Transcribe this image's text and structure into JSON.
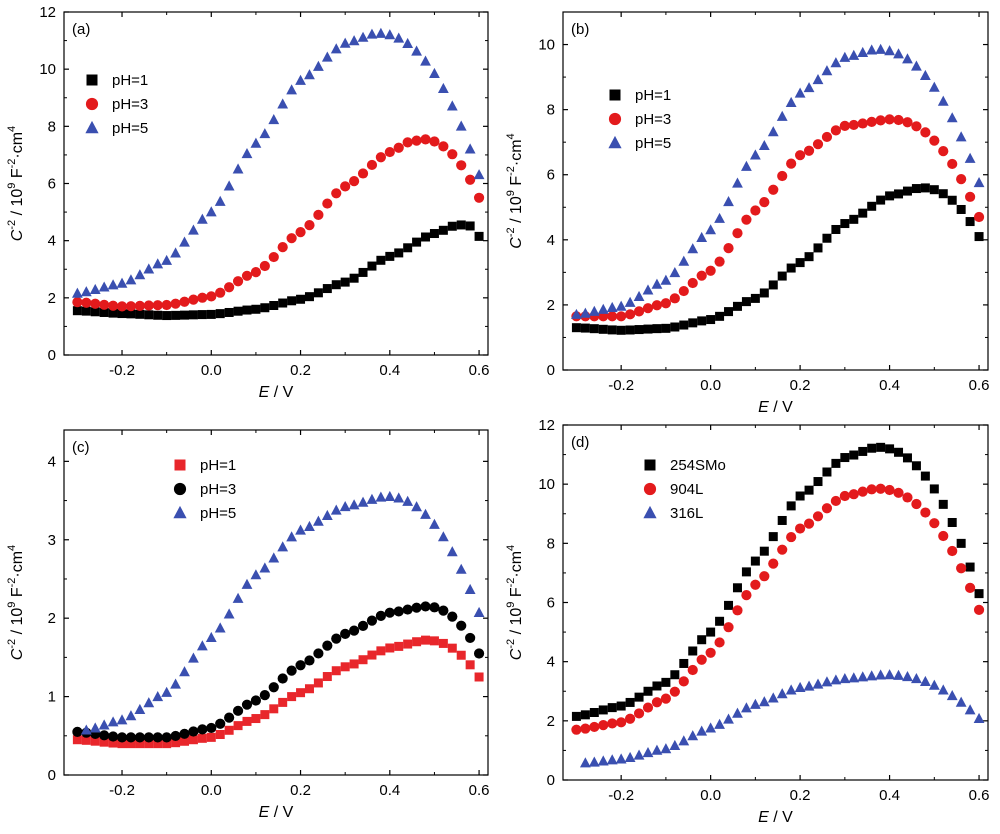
{
  "chart_data": [
    {
      "id": "a",
      "type": "scatter",
      "panel_label": "(a)",
      "xlabel_var": "E",
      "xlabel_unit": " / V",
      "ylabel_var": "C",
      "ylabel_sup1": "-2",
      "ylabel_mid": " / 10",
      "ylabel_sup2": "9",
      "ylabel_mid2": " F",
      "ylabel_sup3": "-2",
      "ylabel_end": "·cm",
      "ylabel_sup4": "4",
      "xlim": [
        -0.33,
        0.62
      ],
      "ylim": [
        0,
        12
      ],
      "xticks": [
        -0.2,
        0.0,
        0.2,
        0.4,
        0.6
      ],
      "xtick_labels": [
        "-0.2",
        "0.0",
        "0.2",
        "0.4",
        "0.6"
      ],
      "yticks": [
        0,
        2,
        4,
        6,
        8,
        10,
        12
      ],
      "ytick_labels": [
        "0",
        "2",
        "4",
        "6",
        "8",
        "10",
        "12"
      ],
      "legend_position": "upper-left",
      "series": [
        {
          "name": "pH=1",
          "marker": "square",
          "color": "#000000",
          "peak_x": 0.57,
          "peak_y": 4.55,
          "end_y": 4.15,
          "anchors": [
            [
              -0.3,
              1.55
            ],
            [
              -0.2,
              1.45
            ],
            [
              -0.1,
              1.38
            ],
            [
              0.0,
              1.42
            ],
            [
              0.1,
              1.6
            ],
            [
              0.2,
              1.95
            ],
            [
              0.3,
              2.55
            ],
            [
              0.4,
              3.45
            ],
            [
              0.5,
              4.25
            ],
            [
              0.55,
              4.55
            ]
          ]
        },
        {
          "name": "pH=3",
          "marker": "circle",
          "color": "#e31a1c",
          "peak_x": 0.47,
          "peak_y": 7.55,
          "end_y": 5.5,
          "anchors": [
            [
              -0.3,
              1.85
            ],
            [
              -0.2,
              1.7
            ],
            [
              -0.1,
              1.75
            ],
            [
              0.0,
              2.05
            ],
            [
              0.1,
              2.9
            ],
            [
              0.2,
              4.3
            ],
            [
              0.3,
              5.9
            ],
            [
              0.4,
              7.1
            ],
            [
              0.45,
              7.5
            ]
          ]
        },
        {
          "name": "pH=5",
          "marker": "triangle",
          "color": "#3a4fb0",
          "peak_x": 0.37,
          "peak_y": 11.25,
          "end_y": 6.3,
          "anchors": [
            [
              -0.3,
              2.15
            ],
            [
              -0.2,
              2.5
            ],
            [
              -0.1,
              3.3
            ],
            [
              0.0,
              5.0
            ],
            [
              0.1,
              7.4
            ],
            [
              0.2,
              9.6
            ],
            [
              0.3,
              10.9
            ],
            [
              0.37,
              11.25
            ]
          ]
        }
      ]
    },
    {
      "id": "b",
      "type": "scatter",
      "panel_label": "(b)",
      "xlabel_var": "E",
      "xlabel_unit": " / V",
      "ylabel_var": "C",
      "ylabel_sup1": "-2",
      "ylabel_mid": " / 10",
      "ylabel_sup2": "9",
      "ylabel_mid2": " F",
      "ylabel_sup3": "-2",
      "ylabel_end": "·cm",
      "ylabel_sup4": "4",
      "xlim": [
        -0.33,
        0.62
      ],
      "ylim": [
        0,
        11
      ],
      "xticks": [
        -0.2,
        0.0,
        0.2,
        0.4,
        0.6
      ],
      "xtick_labels": [
        "-0.2",
        "0.0",
        "0.2",
        "0.4",
        "0.6"
      ],
      "yticks": [
        0,
        2,
        4,
        6,
        8,
        10
      ],
      "ytick_labels": [
        "0",
        "2",
        "4",
        "6",
        "8",
        "10"
      ],
      "legend_position": "upper-left",
      "series": [
        {
          "name": "pH=1",
          "marker": "square",
          "color": "#000000",
          "peak_x": 0.47,
          "peak_y": 5.6,
          "end_y": 4.1,
          "anchors": [
            [
              -0.3,
              1.3
            ],
            [
              -0.2,
              1.22
            ],
            [
              -0.1,
              1.28
            ],
            [
              0.0,
              1.55
            ],
            [
              0.1,
              2.2
            ],
            [
              0.2,
              3.3
            ],
            [
              0.3,
              4.5
            ],
            [
              0.4,
              5.35
            ],
            [
              0.47,
              5.6
            ]
          ]
        },
        {
          "name": "pH=3",
          "marker": "circle",
          "color": "#e31a1c",
          "peak_x": 0.4,
          "peak_y": 7.7,
          "end_y": 4.7,
          "anchors": [
            [
              -0.3,
              1.65
            ],
            [
              -0.2,
              1.65
            ],
            [
              -0.1,
              2.05
            ],
            [
              0.0,
              3.05
            ],
            [
              0.1,
              4.9
            ],
            [
              0.2,
              6.6
            ],
            [
              0.3,
              7.5
            ],
            [
              0.4,
              7.7
            ]
          ]
        },
        {
          "name": "pH=5",
          "marker": "triangle",
          "color": "#3a4fb0",
          "peak_x": 0.37,
          "peak_y": 9.85,
          "end_y": 5.75,
          "anchors": [
            [
              -0.3,
              1.7
            ],
            [
              -0.2,
              1.95
            ],
            [
              -0.1,
              2.75
            ],
            [
              0.0,
              4.3
            ],
            [
              0.1,
              6.6
            ],
            [
              0.2,
              8.5
            ],
            [
              0.3,
              9.6
            ],
            [
              0.37,
              9.85
            ]
          ]
        }
      ]
    },
    {
      "id": "c",
      "type": "scatter",
      "panel_label": "(c)",
      "xlabel_var": "E",
      "xlabel_unit": " / V",
      "ylabel_var": "C",
      "ylabel_sup1": "-2",
      "ylabel_mid": " / 10",
      "ylabel_sup2": "9",
      "ylabel_mid2": " F",
      "ylabel_sup3": "-2",
      "ylabel_end": "·cm",
      "ylabel_sup4": "4",
      "xlim": [
        -0.33,
        0.62
      ],
      "ylim": [
        0,
        4.4
      ],
      "xticks": [
        -0.2,
        0.0,
        0.2,
        0.4,
        0.6
      ],
      "xtick_labels": [
        "-0.2",
        "0.0",
        "0.2",
        "0.4",
        "0.6"
      ],
      "yticks": [
        0,
        1,
        2,
        3,
        4
      ],
      "ytick_labels": [
        "0",
        "1",
        "2",
        "3",
        "4"
      ],
      "legend_position": "top-center",
      "series": [
        {
          "name": "pH=1",
          "marker": "square",
          "color": "#e8262b",
          "peak_x": 0.48,
          "peak_y": 1.72,
          "end_y": 1.25,
          "anchors": [
            [
              -0.3,
              0.45
            ],
            [
              -0.2,
              0.4
            ],
            [
              -0.1,
              0.4
            ],
            [
              0.0,
              0.48
            ],
            [
              0.1,
              0.72
            ],
            [
              0.2,
              1.05
            ],
            [
              0.3,
              1.38
            ],
            [
              0.4,
              1.62
            ],
            [
              0.48,
              1.72
            ]
          ]
        },
        {
          "name": "pH=3",
          "marker": "circle",
          "color": "#000000",
          "peak_x": 0.48,
          "peak_y": 2.15,
          "end_y": 1.55,
          "anchors": [
            [
              -0.3,
              0.55
            ],
            [
              -0.2,
              0.48
            ],
            [
              -0.1,
              0.48
            ],
            [
              0.0,
              0.6
            ],
            [
              0.1,
              0.95
            ],
            [
              0.2,
              1.4
            ],
            [
              0.3,
              1.8
            ],
            [
              0.4,
              2.07
            ],
            [
              0.48,
              2.15
            ]
          ]
        },
        {
          "name": "pH=5",
          "marker": "triangle",
          "color": "#3a4fb0",
          "peak_x": 0.39,
          "peak_y": 3.55,
          "end_y": 2.07,
          "anchors": [
            [
              -0.28,
              0.57
            ],
            [
              -0.2,
              0.7
            ],
            [
              -0.1,
              1.05
            ],
            [
              0.0,
              1.75
            ],
            [
              0.1,
              2.55
            ],
            [
              0.2,
              3.12
            ],
            [
              0.3,
              3.42
            ],
            [
              0.39,
              3.55
            ]
          ]
        }
      ]
    },
    {
      "id": "d",
      "type": "scatter",
      "panel_label": "(d)",
      "xlabel_var": "E",
      "xlabel_unit": " / V",
      "ylabel_var": "C",
      "ylabel_sup1": "-2",
      "ylabel_mid": " / 10",
      "ylabel_sup2": "9",
      "ylabel_mid2": " F",
      "ylabel_sup3": "-2",
      "ylabel_end": "·cm",
      "ylabel_sup4": "4",
      "xlim": [
        -0.33,
        0.62
      ],
      "ylim": [
        0,
        12
      ],
      "xticks": [
        -0.2,
        0.0,
        0.2,
        0.4,
        0.6
      ],
      "xtick_labels": [
        "-0.2",
        "0.0",
        "0.2",
        "0.4",
        "0.6"
      ],
      "yticks": [
        0,
        2,
        4,
        6,
        8,
        10,
        12
      ],
      "ytick_labels": [
        "0",
        "2",
        "4",
        "6",
        "8",
        "10",
        "12"
      ],
      "legend_position": "upper-left",
      "series": [
        {
          "name": "254SMo",
          "marker": "square",
          "color": "#000000",
          "peak_x": 0.37,
          "peak_y": 11.25,
          "end_y": 6.3,
          "anchors": [
            [
              -0.3,
              2.15
            ],
            [
              -0.2,
              2.5
            ],
            [
              -0.1,
              3.3
            ],
            [
              0.0,
              5.0
            ],
            [
              0.1,
              7.4
            ],
            [
              0.2,
              9.6
            ],
            [
              0.3,
              10.9
            ],
            [
              0.37,
              11.25
            ]
          ]
        },
        {
          "name": "904L",
          "marker": "circle",
          "color": "#e31a1c",
          "peak_x": 0.37,
          "peak_y": 9.85,
          "end_y": 5.75,
          "anchors": [
            [
              -0.3,
              1.7
            ],
            [
              -0.2,
              1.95
            ],
            [
              -0.1,
              2.75
            ],
            [
              0.0,
              4.3
            ],
            [
              0.1,
              6.6
            ],
            [
              0.2,
              8.5
            ],
            [
              0.3,
              9.6
            ],
            [
              0.37,
              9.85
            ]
          ]
        },
        {
          "name": "316L",
          "marker": "triangle",
          "color": "#3a4fb0",
          "peak_x": 0.39,
          "peak_y": 3.55,
          "end_y": 2.07,
          "anchors": [
            [
              -0.28,
              0.57
            ],
            [
              -0.2,
              0.7
            ],
            [
              -0.1,
              1.05
            ],
            [
              0.0,
              1.75
            ],
            [
              0.1,
              2.55
            ],
            [
              0.2,
              3.12
            ],
            [
              0.3,
              3.42
            ],
            [
              0.39,
              3.55
            ]
          ]
        }
      ]
    }
  ]
}
